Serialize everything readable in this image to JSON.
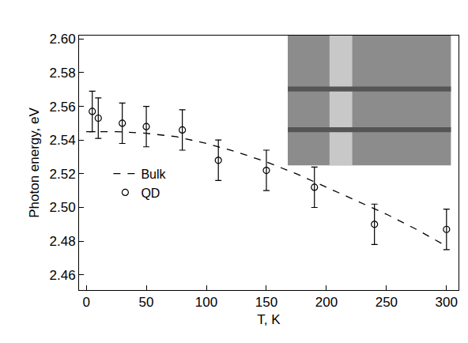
{
  "chart_data": {
    "type": "scatter",
    "x_label": "T, K",
    "y_label": "Photon energy, eV",
    "xlim": [
      -6,
      310
    ],
    "ylim": [
      2.451,
      2.602
    ],
    "xticks": [
      0,
      50,
      100,
      150,
      200,
      250,
      300
    ],
    "yticks": [
      {
        "value": 2.46,
        "label": "2.46"
      },
      {
        "value": 2.48,
        "label": "2.48"
      },
      {
        "value": 2.5,
        "label": "2.50"
      },
      {
        "value": 2.52,
        "label": "2.52"
      },
      {
        "value": 2.54,
        "label": "2.54"
      },
      {
        "value": 2.56,
        "label": "2.56"
      },
      {
        "value": 2.58,
        "label": "2.58"
      },
      {
        "value": 2.6,
        "label": "2.60"
      }
    ],
    "grid": false,
    "legend": "left",
    "series": [
      {
        "name": "Bulk",
        "type": "line",
        "line_style": "dashed",
        "color": "#000000",
        "x": [
          0,
          25,
          50,
          75,
          100,
          125,
          150,
          175,
          200,
          225,
          250,
          275,
          300
        ],
        "values": [
          2.545,
          2.545,
          2.544,
          2.542,
          2.538,
          2.533,
          2.527,
          2.52,
          2.512,
          2.504,
          2.496,
          2.487,
          2.477
        ]
      },
      {
        "name": "QD",
        "type": "scatter",
        "marker": "open_circle",
        "color": "#000000",
        "x": [
          5,
          10,
          30,
          50,
          80,
          110,
          150,
          190,
          240,
          300
        ],
        "values": [
          2.557,
          2.553,
          2.55,
          2.548,
          2.546,
          2.528,
          2.522,
          2.512,
          2.49,
          2.487
        ],
        "error": [
          0.012,
          0.012,
          0.012,
          0.012,
          0.012,
          0.012,
          0.012,
          0.012,
          0.012,
          0.012
        ]
      }
    ]
  }
}
